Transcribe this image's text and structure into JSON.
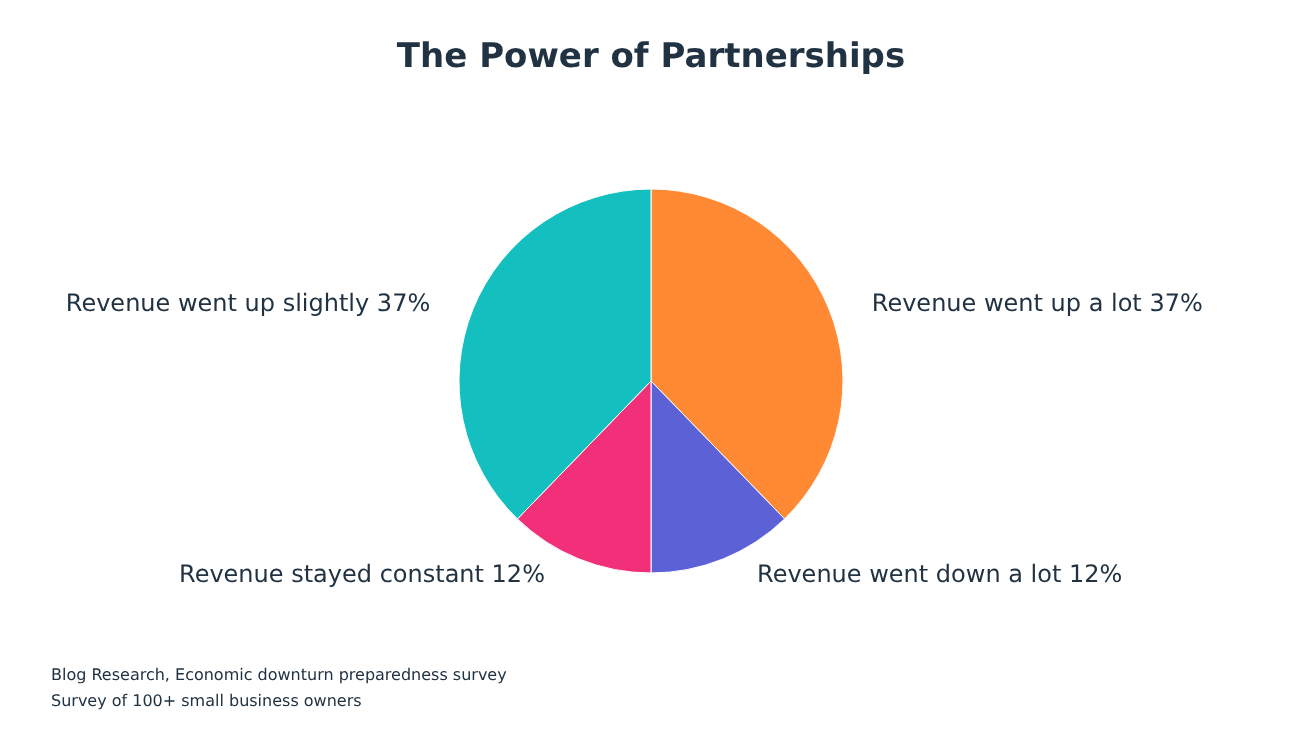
{
  "chart_data": {
    "type": "pie",
    "title": "The Power of Partnerships",
    "categories": [
      "Revenue went up a lot",
      "Revenue went down a lot",
      "Revenue stayed constant",
      "Revenue went up slightly"
    ],
    "values": [
      37,
      12,
      12,
      37
    ],
    "value_labels": [
      "37%",
      "12%",
      "12%",
      "37%"
    ],
    "colors": [
      "#ff8a33",
      "#5c62d6",
      "#f2307a",
      "#13bfbf"
    ],
    "annotations": [
      "Blog Research, Economic downturn preparedness survey",
      "Survey of 100+ small business owners"
    ]
  }
}
